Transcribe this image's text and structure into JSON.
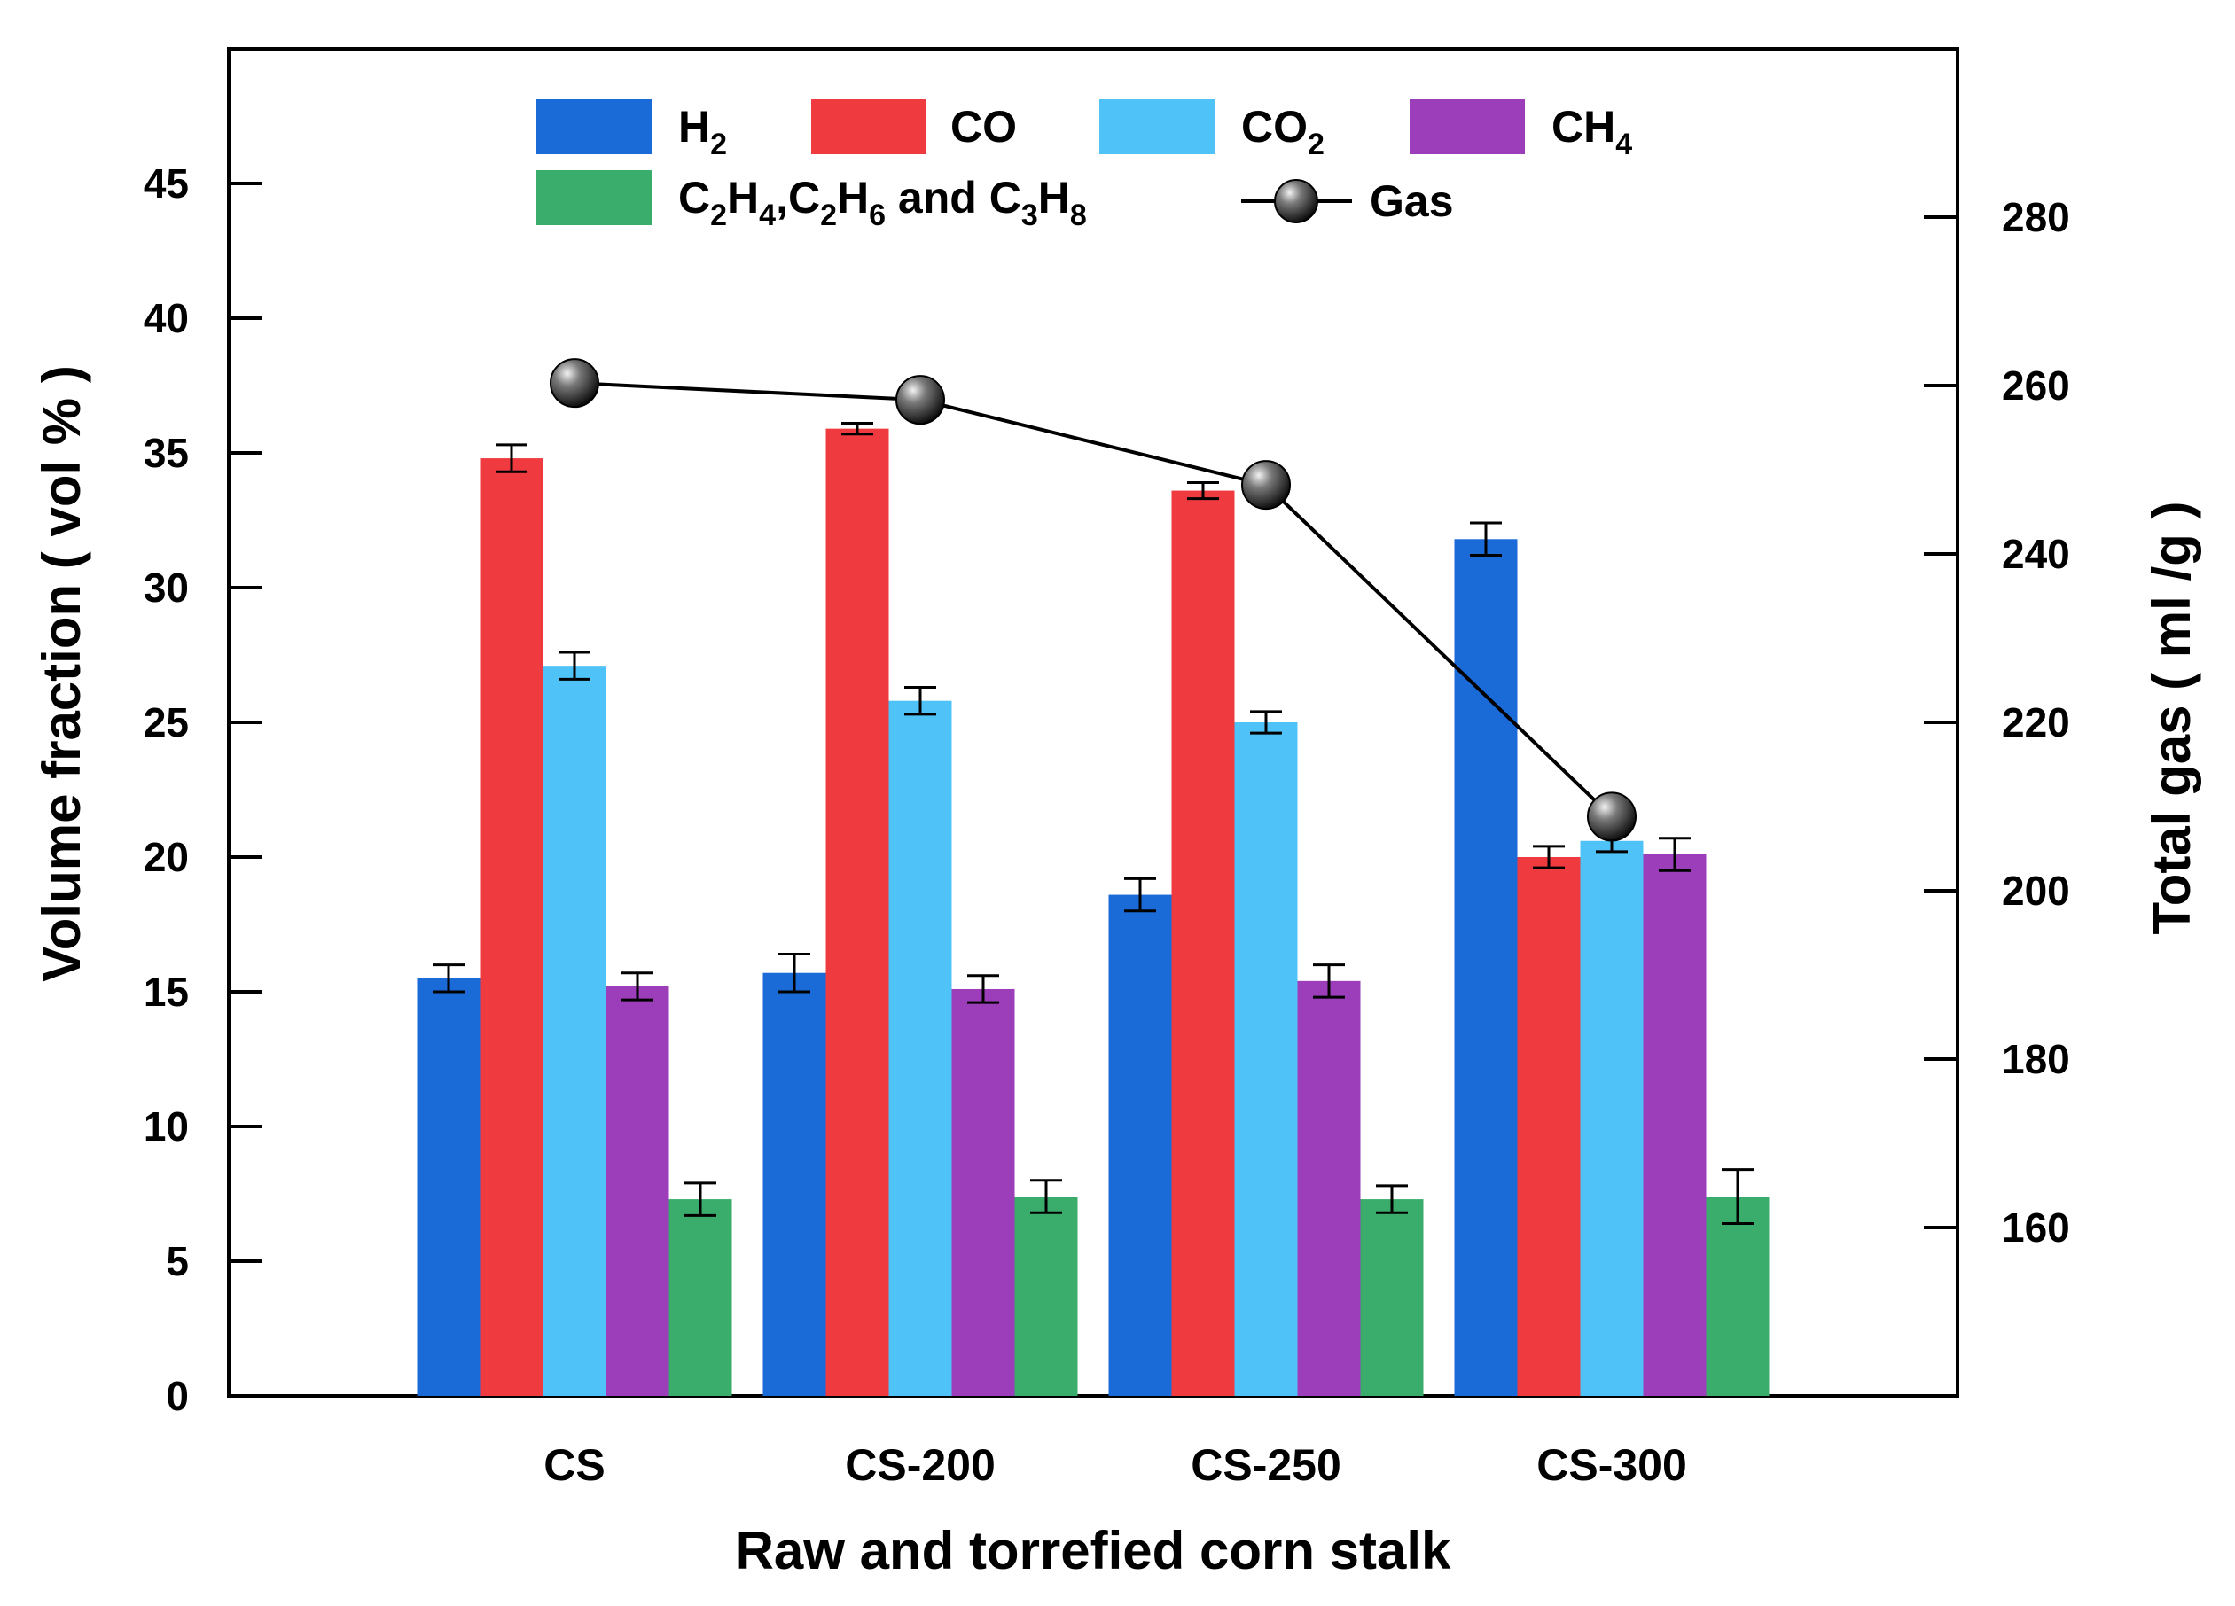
{
  "chart_data": {
    "type": "bar",
    "xlabel": "Raw and torrefied corn stalk",
    "ylabel": "Volume fraction ( vol % )",
    "y2label": "Total gas ( ml /g )",
    "ylim": [
      0,
      50
    ],
    "y2lim": [
      140,
      300
    ],
    "yticks": [
      "0",
      "5",
      "10",
      "15",
      "20",
      "25",
      "30",
      "35",
      "40",
      "45"
    ],
    "y2ticks": [
      "160",
      "180",
      "200",
      "220",
      "240",
      "260",
      "280"
    ],
    "categories": [
      "CS",
      "CS-200",
      "CS-250",
      "CS-300"
    ],
    "series": [
      {
        "name": "H2",
        "color": "#1a6ad8",
        "values": [
          15.5,
          15.7,
          18.6,
          31.8
        ],
        "errors": [
          0.5,
          0.7,
          0.6,
          0.6
        ]
      },
      {
        "name": "CO",
        "color": "#ef3a3f",
        "values": [
          34.8,
          35.9,
          33.6,
          20.0
        ],
        "errors": [
          0.5,
          0.2,
          0.3,
          0.4
        ]
      },
      {
        "name": "CO2",
        "color": "#4fc3f8",
        "values": [
          27.1,
          25.8,
          25.0,
          20.6
        ],
        "errors": [
          0.5,
          0.5,
          0.4,
          0.4
        ]
      },
      {
        "name": "CH4",
        "color": "#9c3dba",
        "values": [
          15.2,
          15.1,
          15.4,
          20.1
        ],
        "errors": [
          0.5,
          0.5,
          0.6,
          0.6
        ]
      },
      {
        "name": "C2H4,C2H6 and C3H8",
        "color": "#3aad6c",
        "values": [
          7.3,
          7.4,
          7.3,
          7.4
        ],
        "errors": [
          0.6,
          0.6,
          0.5,
          1.0
        ]
      }
    ],
    "line_series": {
      "name": "Gas",
      "axis": "right",
      "values": [
        260.3,
        258.3,
        248.2,
        208.8
      ]
    },
    "legend": {
      "h2": {
        "main": "H",
        "sub": "2"
      },
      "co": {
        "main": "CO"
      },
      "co2": {
        "main": "CO",
        "sub": "2"
      },
      "ch4": {
        "main": "CH",
        "sub": "4"
      },
      "hc": {
        "p1": "C",
        "s1": "2",
        "p2": "H",
        "s2": "4",
        "p3": ",C",
        "s3": "2",
        "p4": "H",
        "s4": "6",
        "p5": " and C",
        "s5": "3",
        "p6": "H",
        "s6": "8"
      },
      "gas": "Gas",
      "placement": "top"
    }
  }
}
